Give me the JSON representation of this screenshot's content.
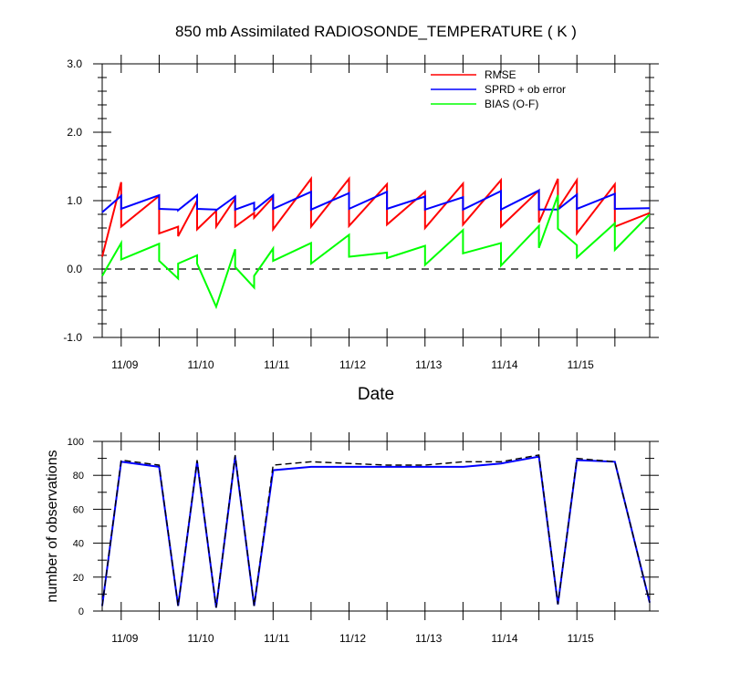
{
  "colors": {
    "rmse": "#ff0000",
    "spread": "#0000ff",
    "bias": "#00ff00",
    "zero_line": "#000000",
    "obs_used": "#0000ff",
    "obs_possible": "#000000"
  },
  "chart_data": [
    {
      "type": "line",
      "title": "850 mb Assimilated RADIOSONDE_TEMPERATURE ( K )",
      "xlabel": "Date",
      "ylabel": "",
      "x_type": "date",
      "xlim": [
        "2008-11-08T18:00",
        "2008-11-15T23:00"
      ],
      "ylim": [
        -1.0,
        3.0
      ],
      "y_ticks": [
        -1.0,
        0.0,
        1.0,
        2.0,
        3.0
      ],
      "y_tick_labels": [
        "-1.0",
        "0.0",
        "1.0",
        "2.0",
        "3.0"
      ],
      "x_tick_labels": [
        "11/09",
        "11/10",
        "11/11",
        "11/12",
        "11/13",
        "11/14",
        "11/15"
      ],
      "x_ticks": [
        "2008-11-09T00:00",
        "2008-11-10T00:00",
        "2008-11-11T00:00",
        "2008-11-12T00:00",
        "2008-11-13T00:00",
        "2008-11-14T00:00",
        "2008-11-15T00:00"
      ],
      "legend": {
        "position": "top-right",
        "entries": [
          "RMSE",
          "SPRD + ob error",
          "BIAS (O-F)"
        ]
      },
      "reference_line": {
        "y": 0.0,
        "style": "dashed"
      },
      "series": [
        {
          "name": "RMSE",
          "x": [
            "2008-11-08T18:00",
            "2008-11-09T00:00",
            "2008-11-09T00:00",
            "2008-11-09T12:00",
            "2008-11-09T12:00",
            "2008-11-09T18:00",
            "2008-11-09T18:00",
            "2008-11-10T00:00",
            "2008-11-10T00:00",
            "2008-11-10T06:00",
            "2008-11-10T06:00",
            "2008-11-10T12:00",
            "2008-11-10T12:00",
            "2008-11-10T18:00",
            "2008-11-10T18:00",
            "2008-11-11T00:00",
            "2008-11-11T00:00",
            "2008-11-11T12:00",
            "2008-11-11T12:00",
            "2008-11-12T00:00",
            "2008-11-12T00:00",
            "2008-11-12T12:00",
            "2008-11-12T12:00",
            "2008-11-13T00:00",
            "2008-11-13T00:00",
            "2008-11-13T12:00",
            "2008-11-13T12:00",
            "2008-11-14T00:00",
            "2008-11-14T00:00",
            "2008-11-14T12:00",
            "2008-11-14T12:00",
            "2008-11-14T18:00",
            "2008-11-14T18:00",
            "2008-11-15T00:00",
            "2008-11-15T00:00",
            "2008-11-15T12:00",
            "2008-11-15T12:00",
            "2008-11-15T23:00"
          ],
          "y": [
            0.18,
            1.27,
            0.62,
            1.07,
            0.52,
            0.62,
            0.48,
            1.0,
            0.58,
            0.85,
            0.62,
            1.03,
            0.62,
            0.82,
            0.75,
            1.05,
            0.58,
            1.32,
            0.62,
            1.32,
            0.63,
            1.24,
            0.65,
            1.13,
            0.6,
            1.25,
            0.65,
            1.3,
            0.62,
            1.15,
            0.68,
            1.32,
            0.88,
            1.3,
            0.52,
            1.24,
            0.62,
            0.82
          ]
        },
        {
          "name": "SPRD + ob error",
          "x": [
            "2008-11-08T18:00",
            "2008-11-09T00:00",
            "2008-11-09T00:00",
            "2008-11-09T12:00",
            "2008-11-09T12:00",
            "2008-11-09T18:00",
            "2008-11-09T18:00",
            "2008-11-10T00:00",
            "2008-11-10T00:00",
            "2008-11-10T06:00",
            "2008-11-10T06:00",
            "2008-11-10T12:00",
            "2008-11-10T12:00",
            "2008-11-10T18:00",
            "2008-11-10T18:00",
            "2008-11-11T00:00",
            "2008-11-11T00:00",
            "2008-11-11T12:00",
            "2008-11-11T12:00",
            "2008-11-12T00:00",
            "2008-11-12T00:00",
            "2008-11-12T12:00",
            "2008-11-12T12:00",
            "2008-11-13T00:00",
            "2008-11-13T00:00",
            "2008-11-13T12:00",
            "2008-11-13T12:00",
            "2008-11-14T00:00",
            "2008-11-14T00:00",
            "2008-11-14T12:00",
            "2008-11-14T12:00",
            "2008-11-14T18:00",
            "2008-11-14T18:00",
            "2008-11-15T00:00",
            "2008-11-15T00:00",
            "2008-11-15T12:00",
            "2008-11-15T12:00",
            "2008-11-15T23:00"
          ],
          "y": [
            0.83,
            1.07,
            0.88,
            1.08,
            0.88,
            0.87,
            0.86,
            1.08,
            0.88,
            0.87,
            0.86,
            1.06,
            0.87,
            0.97,
            0.86,
            1.08,
            0.88,
            1.13,
            0.87,
            1.11,
            0.88,
            1.13,
            0.88,
            1.06,
            0.87,
            1.05,
            0.87,
            1.14,
            0.87,
            1.15,
            0.87,
            0.87,
            0.87,
            1.09,
            0.88,
            1.1,
            0.88,
            0.89
          ]
        },
        {
          "name": "BIAS (O-F)",
          "x": [
            "2008-11-08T18:00",
            "2008-11-09T00:00",
            "2008-11-09T00:00",
            "2008-11-09T12:00",
            "2008-11-09T12:00",
            "2008-11-09T18:00",
            "2008-11-09T18:00",
            "2008-11-10T00:00",
            "2008-11-10T00:00",
            "2008-11-10T06:00",
            "2008-11-10T12:00",
            "2008-11-10T12:00",
            "2008-11-10T18:00",
            "2008-11-10T18:00",
            "2008-11-11T00:00",
            "2008-11-11T00:00",
            "2008-11-11T12:00",
            "2008-11-11T12:00",
            "2008-11-12T00:00",
            "2008-11-12T00:00",
            "2008-11-12T12:00",
            "2008-11-12T12:00",
            "2008-11-13T00:00",
            "2008-11-13T00:00",
            "2008-11-13T12:00",
            "2008-11-13T12:00",
            "2008-11-14T00:00",
            "2008-11-14T00:00",
            "2008-11-14T12:00",
            "2008-11-14T12:00",
            "2008-11-14T18:00",
            "2008-11-14T18:00",
            "2008-11-15T00:00",
            "2008-11-15T00:00",
            "2008-11-15T12:00",
            "2008-11-15T12:00",
            "2008-11-15T23:00"
          ],
          "y": [
            -0.1,
            0.38,
            0.14,
            0.37,
            0.12,
            -0.14,
            0.08,
            0.2,
            0.08,
            -0.55,
            0.29,
            0.03,
            -0.27,
            -0.1,
            0.3,
            0.12,
            0.38,
            0.08,
            0.5,
            0.18,
            0.24,
            0.16,
            0.34,
            0.06,
            0.57,
            0.23,
            0.38,
            0.05,
            0.63,
            0.31,
            1.08,
            0.59,
            0.35,
            0.17,
            0.67,
            0.28,
            0.8
          ]
        }
      ]
    },
    {
      "type": "line",
      "title": "",
      "xlabel": "",
      "ylabel": "number of observations",
      "x_type": "date",
      "xlim": [
        "2008-11-08T18:00",
        "2008-11-15T23:00"
      ],
      "ylim": [
        0,
        100
      ],
      "y_ticks": [
        0,
        20,
        40,
        60,
        80,
        100
      ],
      "y_tick_labels": [
        "0",
        "20",
        "40",
        "60",
        "80",
        "100"
      ],
      "x_tick_labels": [
        "11/09",
        "11/10",
        "11/11",
        "11/12",
        "11/13",
        "11/14",
        "11/15"
      ],
      "x_ticks": [
        "2008-11-09T00:00",
        "2008-11-10T00:00",
        "2008-11-11T00:00",
        "2008-11-12T00:00",
        "2008-11-13T00:00",
        "2008-11-14T00:00",
        "2008-11-15T00:00"
      ],
      "series": [
        {
          "x": [
            "2008-11-08T18:00",
            "2008-11-09T00:00",
            "2008-11-09T12:00",
            "2008-11-09T18:00",
            "2008-11-10T00:00",
            "2008-11-10T06:00",
            "2008-11-10T12:00",
            "2008-11-10T18:00",
            "2008-11-11T00:00",
            "2008-11-11T12:00",
            "2008-11-12T00:00",
            "2008-11-12T12:00",
            "2008-11-13T00:00",
            "2008-11-13T12:00",
            "2008-11-14T00:00",
            "2008-11-14T12:00",
            "2008-11-14T18:00",
            "2008-11-15T00:00",
            "2008-11-15T12:00",
            "2008-11-15T23:00"
          ],
          "y": [
            3,
            88,
            85,
            3,
            88,
            2,
            91,
            3,
            83,
            85,
            85,
            85,
            85,
            85,
            87,
            91,
            4,
            89,
            88,
            5
          ],
          "style": "solid"
        },
        {
          "x": [
            "2008-11-08T18:00",
            "2008-11-09T00:00",
            "2008-11-09T12:00",
            "2008-11-09T18:00",
            "2008-11-10T00:00",
            "2008-11-10T06:00",
            "2008-11-10T12:00",
            "2008-11-10T18:00",
            "2008-11-11T00:00",
            "2008-11-11T12:00",
            "2008-11-12T00:00",
            "2008-11-12T12:00",
            "2008-11-13T00:00",
            "2008-11-13T12:00",
            "2008-11-14T00:00",
            "2008-11-14T12:00",
            "2008-11-14T18:00",
            "2008-11-15T00:00",
            "2008-11-15T12:00",
            "2008-11-15T23:00"
          ],
          "y": [
            3,
            89,
            86,
            3,
            89,
            2,
            92,
            3,
            86,
            88,
            87,
            86,
            86,
            88,
            88,
            92,
            4,
            90,
            88,
            5
          ],
          "style": "dashed"
        }
      ]
    }
  ]
}
